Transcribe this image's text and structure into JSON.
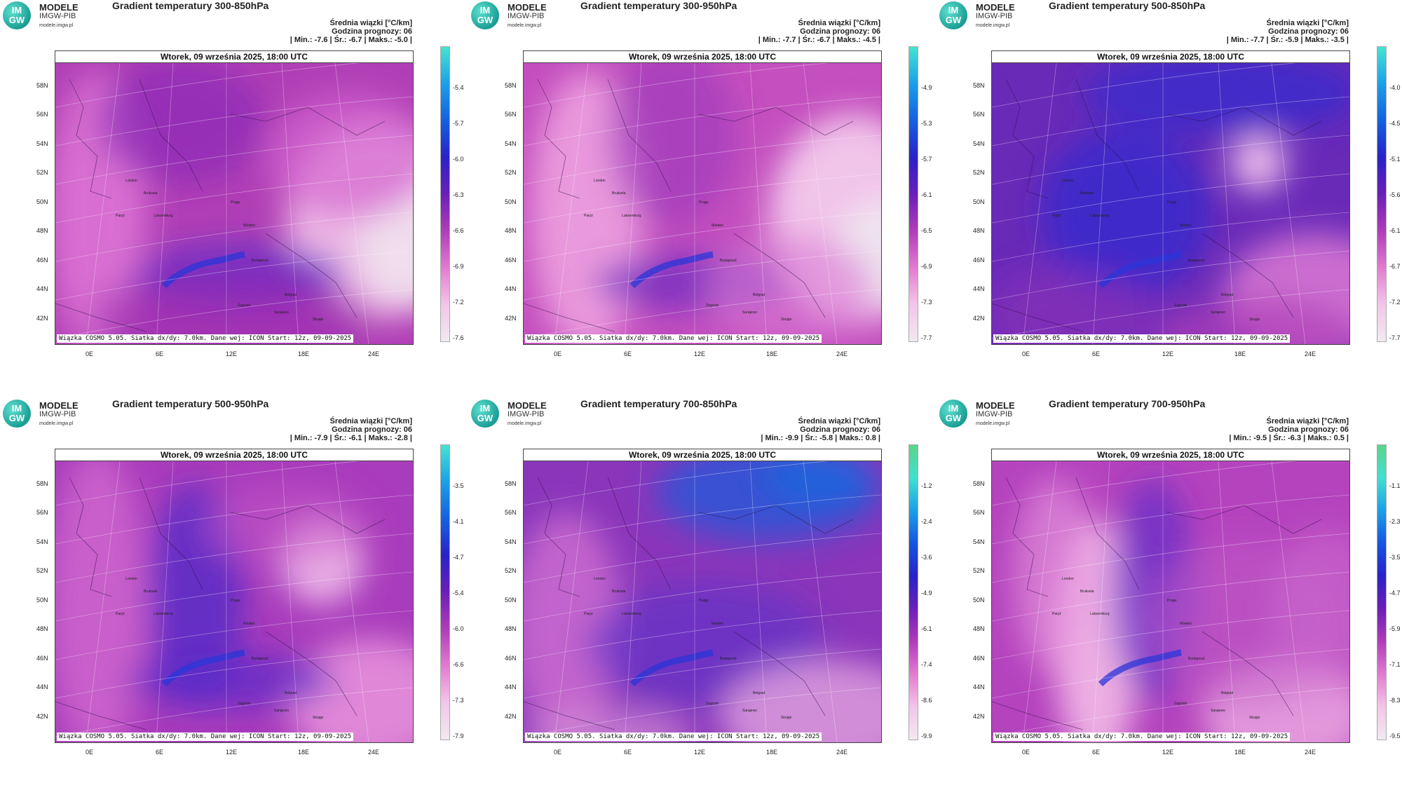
{
  "brand": {
    "logo_text": "IM GW",
    "name": "MODELE",
    "org": "IMGW-PIB",
    "site": "modele.imgw.pl"
  },
  "common": {
    "date": "Wtorek, 09 września 2025, 18:00 UTC",
    "mean_label": "Średnia wiązki [°C/km]",
    "forecast_hour": "Godzina prognozy: 06",
    "footer": "Wiązka COSMO 5.05. Siatka dx/dy: 7.0km. Dane wej: ICON Start: 12z, 09-09-2025",
    "lat_labels": [
      "58N",
      "56N",
      "54N",
      "52N",
      "50N",
      "48N",
      "46N",
      "44N",
      "42N"
    ],
    "lon_labels": [
      "0E",
      "6E",
      "12E",
      "18E",
      "24E"
    ]
  },
  "panels": [
    {
      "title": "Gradient temperatury 300-850hPa",
      "stats": "| Min.: -7.6 | Śr.: -6.7 | Maks.: -5.0 |",
      "ticks": [
        "-5.4",
        "-5.7",
        "-6.0",
        "-6.3",
        "-6.6",
        "-6.9",
        "-7.2",
        "-7.6"
      ],
      "palette": "p1"
    },
    {
      "title": "Gradient temperatury 300-950hPa",
      "stats": "| Min.: -7.7 | Śr.: -6.7 | Maks.: -4.5 |",
      "ticks": [
        "-4.9",
        "-5.3",
        "-5.7",
        "-6.1",
        "-6.5",
        "-6.9",
        "-7.3",
        "-7.7"
      ],
      "palette": "p2"
    },
    {
      "title": "Gradient temperatury 500-850hPa",
      "stats": "| Min.: -7.7 | Śr.: -5.9 | Maks.: -3.5 |",
      "ticks": [
        "-4.0",
        "-4.5",
        "-5.1",
        "-5.6",
        "-6.1",
        "-6.7",
        "-7.2",
        "-7.7"
      ],
      "palette": "p3"
    },
    {
      "title": "Gradient temperatury 500-950hPa",
      "stats": "| Min.: -7.9 | Śr.: -6.1 | Maks.: -2.8 |",
      "ticks": [
        "-3.5",
        "-4.1",
        "-4.7",
        "-5.4",
        "-6.0",
        "-6.6",
        "-7.3",
        "-7.9"
      ],
      "palette": "p4"
    },
    {
      "title": "Gradient temperatury 700-850hPa",
      "stats": "| Min.: -9.9 | Śr.: -5.8 | Maks.: 0.8 |",
      "ticks": [
        "-1.2",
        "-2.4",
        "-3.6",
        "-4.9",
        "-6.1",
        "-7.4",
        "-8.6",
        "-9.9"
      ],
      "palette": "p5"
    },
    {
      "title": "Gradient temperatury 700-950hPa",
      "stats": "| Min.: -9.5 | Śr.: -6.3 | Maks.: 0.5 |",
      "ticks": [
        "-1.1",
        "-2.3",
        "-3.5",
        "-4.7",
        "-5.9",
        "-7.1",
        "-8.3",
        "-9.5"
      ],
      "palette": "p6"
    }
  ],
  "cities": [
    "London",
    "Bruksela",
    "Paryż",
    "Luksemburg",
    "Praga",
    "Wiedeń",
    "Budapeszt",
    "Zagrzeb",
    "Belgrad",
    "Sarajewo",
    "Skopje"
  ],
  "colors": {
    "pink_light": "#f6b8e6",
    "magenta": "#c13cb3",
    "purple": "#7a1fb0",
    "blue": "#2a2ad0",
    "cbar_top": "#40e0d0"
  }
}
